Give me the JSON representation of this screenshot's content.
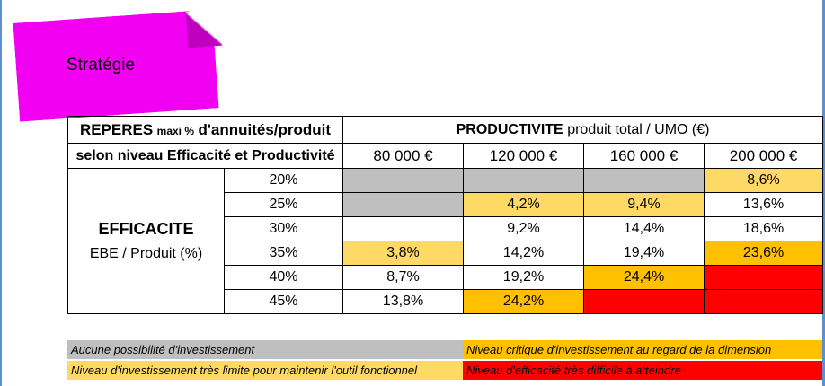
{
  "note": {
    "title": "Stratégie",
    "color": "#f200f2"
  },
  "table": {
    "reperes_bold": "REPERES",
    "reperes_small": "maxi %",
    "reperes_rest": "d'annuités/produit",
    "reperes_sub": "selon niveau Efficacité et Productivité",
    "productivite_bold": "PRODUCTIVITE",
    "productivite_rest": "produit total / UMO (€)",
    "columns": [
      "80 000 €",
      "120 000 €",
      "160 000 €",
      "200 000 €"
    ],
    "efficacite_title": "EFFICACITE",
    "efficacite_sub": "EBE / Produit (%)",
    "rows": [
      {
        "label": "20%",
        "cells": [
          {
            "v": "",
            "c": "grey"
          },
          {
            "v": "",
            "c": "grey"
          },
          {
            "v": "",
            "c": "grey"
          },
          {
            "v": "8,6%",
            "c": "yellow"
          }
        ]
      },
      {
        "label": "25%",
        "cells": [
          {
            "v": "",
            "c": "grey"
          },
          {
            "v": "4,2%",
            "c": "yellow"
          },
          {
            "v": "9,4%",
            "c": "yellow"
          },
          {
            "v": "13,6%",
            "c": ""
          }
        ]
      },
      {
        "label": "30%",
        "cells": [
          {
            "v": "",
            "c": ""
          },
          {
            "v": "9,2%",
            "c": ""
          },
          {
            "v": "14,4%",
            "c": ""
          },
          {
            "v": "18,6%",
            "c": ""
          }
        ]
      },
      {
        "label": "35%",
        "cells": [
          {
            "v": "3,8%",
            "c": "yellow"
          },
          {
            "v": "14,2%",
            "c": ""
          },
          {
            "v": "19,4%",
            "c": ""
          },
          {
            "v": "23,6%",
            "c": "orange"
          }
        ]
      },
      {
        "label": "40%",
        "cells": [
          {
            "v": "8,7%",
            "c": ""
          },
          {
            "v": "19,2%",
            "c": ""
          },
          {
            "v": "24,4%",
            "c": "orange"
          },
          {
            "v": "",
            "c": "red"
          }
        ]
      },
      {
        "label": "45%",
        "cells": [
          {
            "v": "13,8%",
            "c": ""
          },
          {
            "v": "24,2%",
            "c": "orange"
          },
          {
            "v": "",
            "c": "red"
          },
          {
            "v": "",
            "c": "red"
          }
        ]
      }
    ]
  },
  "legend": {
    "grey": "Aucune possibilité d'investissement",
    "orange": "Niveau critique d'investissement au regard de la dimension",
    "yellow": "Niveau d'investissement très limite pour maintenir l'outil fonctionnel",
    "red": "Niveau d'efficacité très difficile à atteindre"
  },
  "colors": {
    "grey": "#bfbfbf",
    "yellow": "#ffd966",
    "orange": "#ffc000",
    "red": "#ff0000"
  }
}
